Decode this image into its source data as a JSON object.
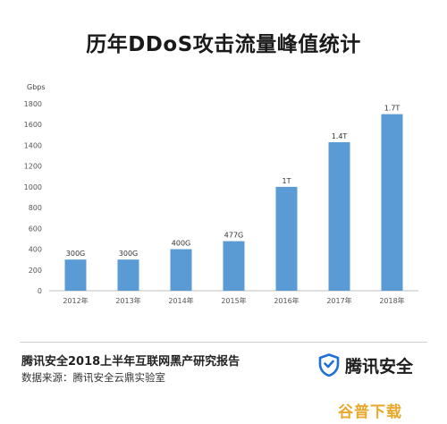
{
  "chart_data": {
    "type": "bar",
    "title": "历年DDoS攻击流量峰值统计",
    "ylabel": "Gbps",
    "xlabel": "",
    "categories": [
      "2012年",
      "2013年",
      "2014年",
      "2015年",
      "2016年",
      "2017年",
      "2018年"
    ],
    "values": [
      300,
      300,
      400,
      477,
      1000,
      1430,
      1700
    ],
    "data_labels": [
      "300G",
      "300G",
      "400G",
      "477G",
      "1T",
      "1.4T",
      "1.7T"
    ],
    "ylim": [
      0,
      1800
    ],
    "yticks": [
      0,
      200,
      400,
      600,
      800,
      1000,
      1200,
      1400,
      1600,
      1800
    ],
    "grid": false,
    "bar_color": "#5b9bd5"
  },
  "footer": {
    "report_title": "腾讯安全2018上半年互联网黑产研究报告",
    "source": "数据来源：腾讯安全云鼎实验室",
    "brand_name": "腾讯安全",
    "brand_icon": "shield-icon"
  },
  "watermark": "谷普下载"
}
